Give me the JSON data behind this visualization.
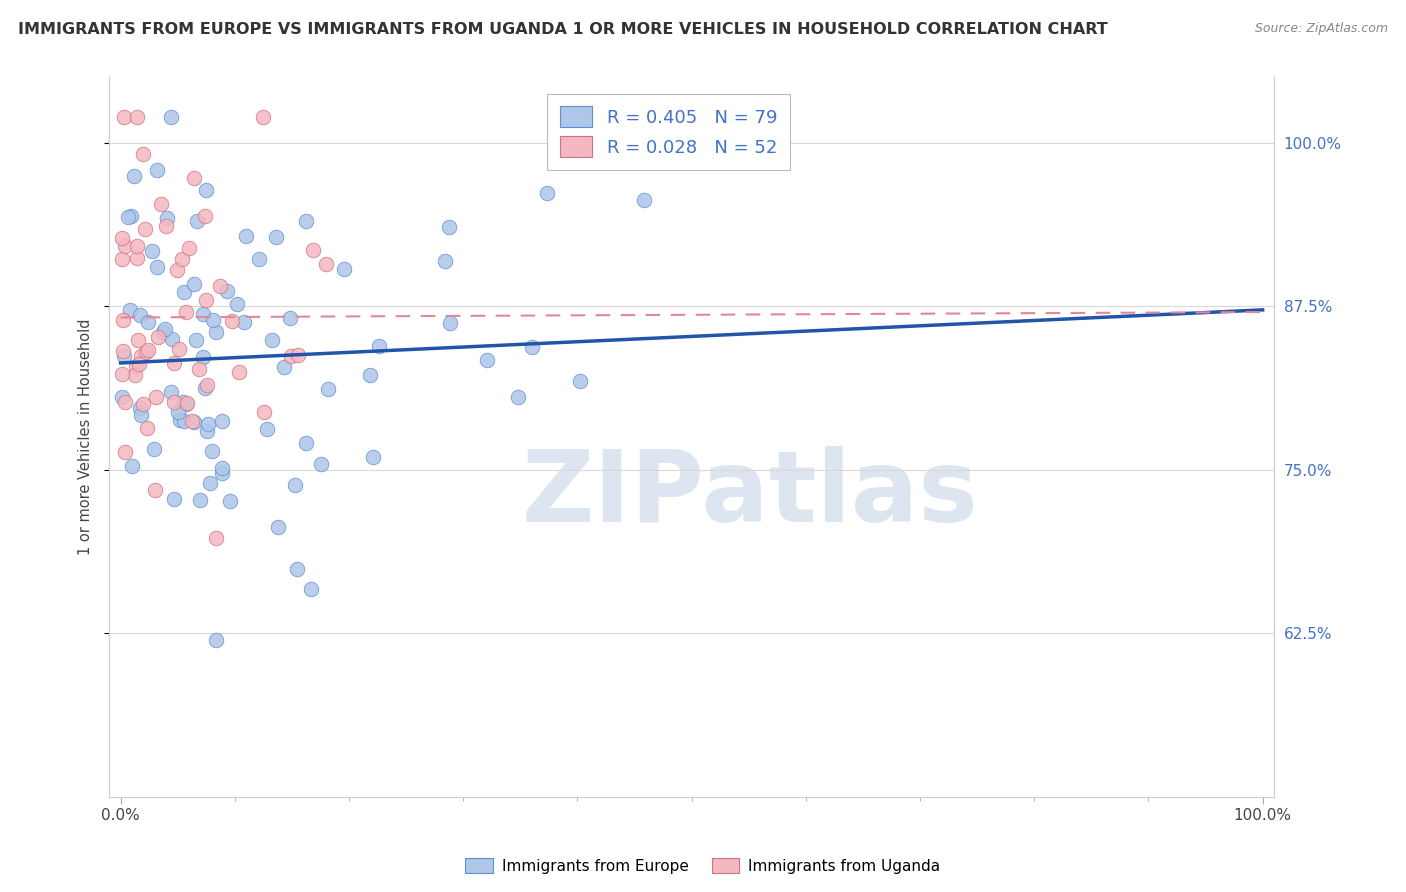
{
  "title": "IMMIGRANTS FROM EUROPE VS IMMIGRANTS FROM UGANDA 1 OR MORE VEHICLES IN HOUSEHOLD CORRELATION CHART",
  "source": "Source: ZipAtlas.com",
  "ylabel": "1 or more Vehicles in Household",
  "europe_color": "#aec6e8",
  "uganda_color": "#f4b8c1",
  "europe_edge_color": "#5b8fd4",
  "uganda_edge_color": "#d07080",
  "europe_line_color": "#2255aa",
  "uganda_line_color": "#e08898",
  "R_europe": 0.405,
  "N_europe": 79,
  "R_uganda": 0.028,
  "N_uganda": 52,
  "xlim": [
    0.0,
    1.0
  ],
  "ylim": [
    0.5,
    1.05
  ],
  "yticks": [
    0.625,
    0.75,
    0.875,
    1.0
  ],
  "ytick_labels": [
    "62.5%",
    "75.0%",
    "87.5%",
    "100.0%"
  ],
  "xticks": [
    0.0,
    1.0
  ],
  "xtick_labels": [
    "0.0%",
    "100.0%"
  ],
  "watermark": "ZIPatlas",
  "legend_europe_label": "Immigrants from Europe",
  "legend_uganda_label": "Immigrants from Uganda"
}
